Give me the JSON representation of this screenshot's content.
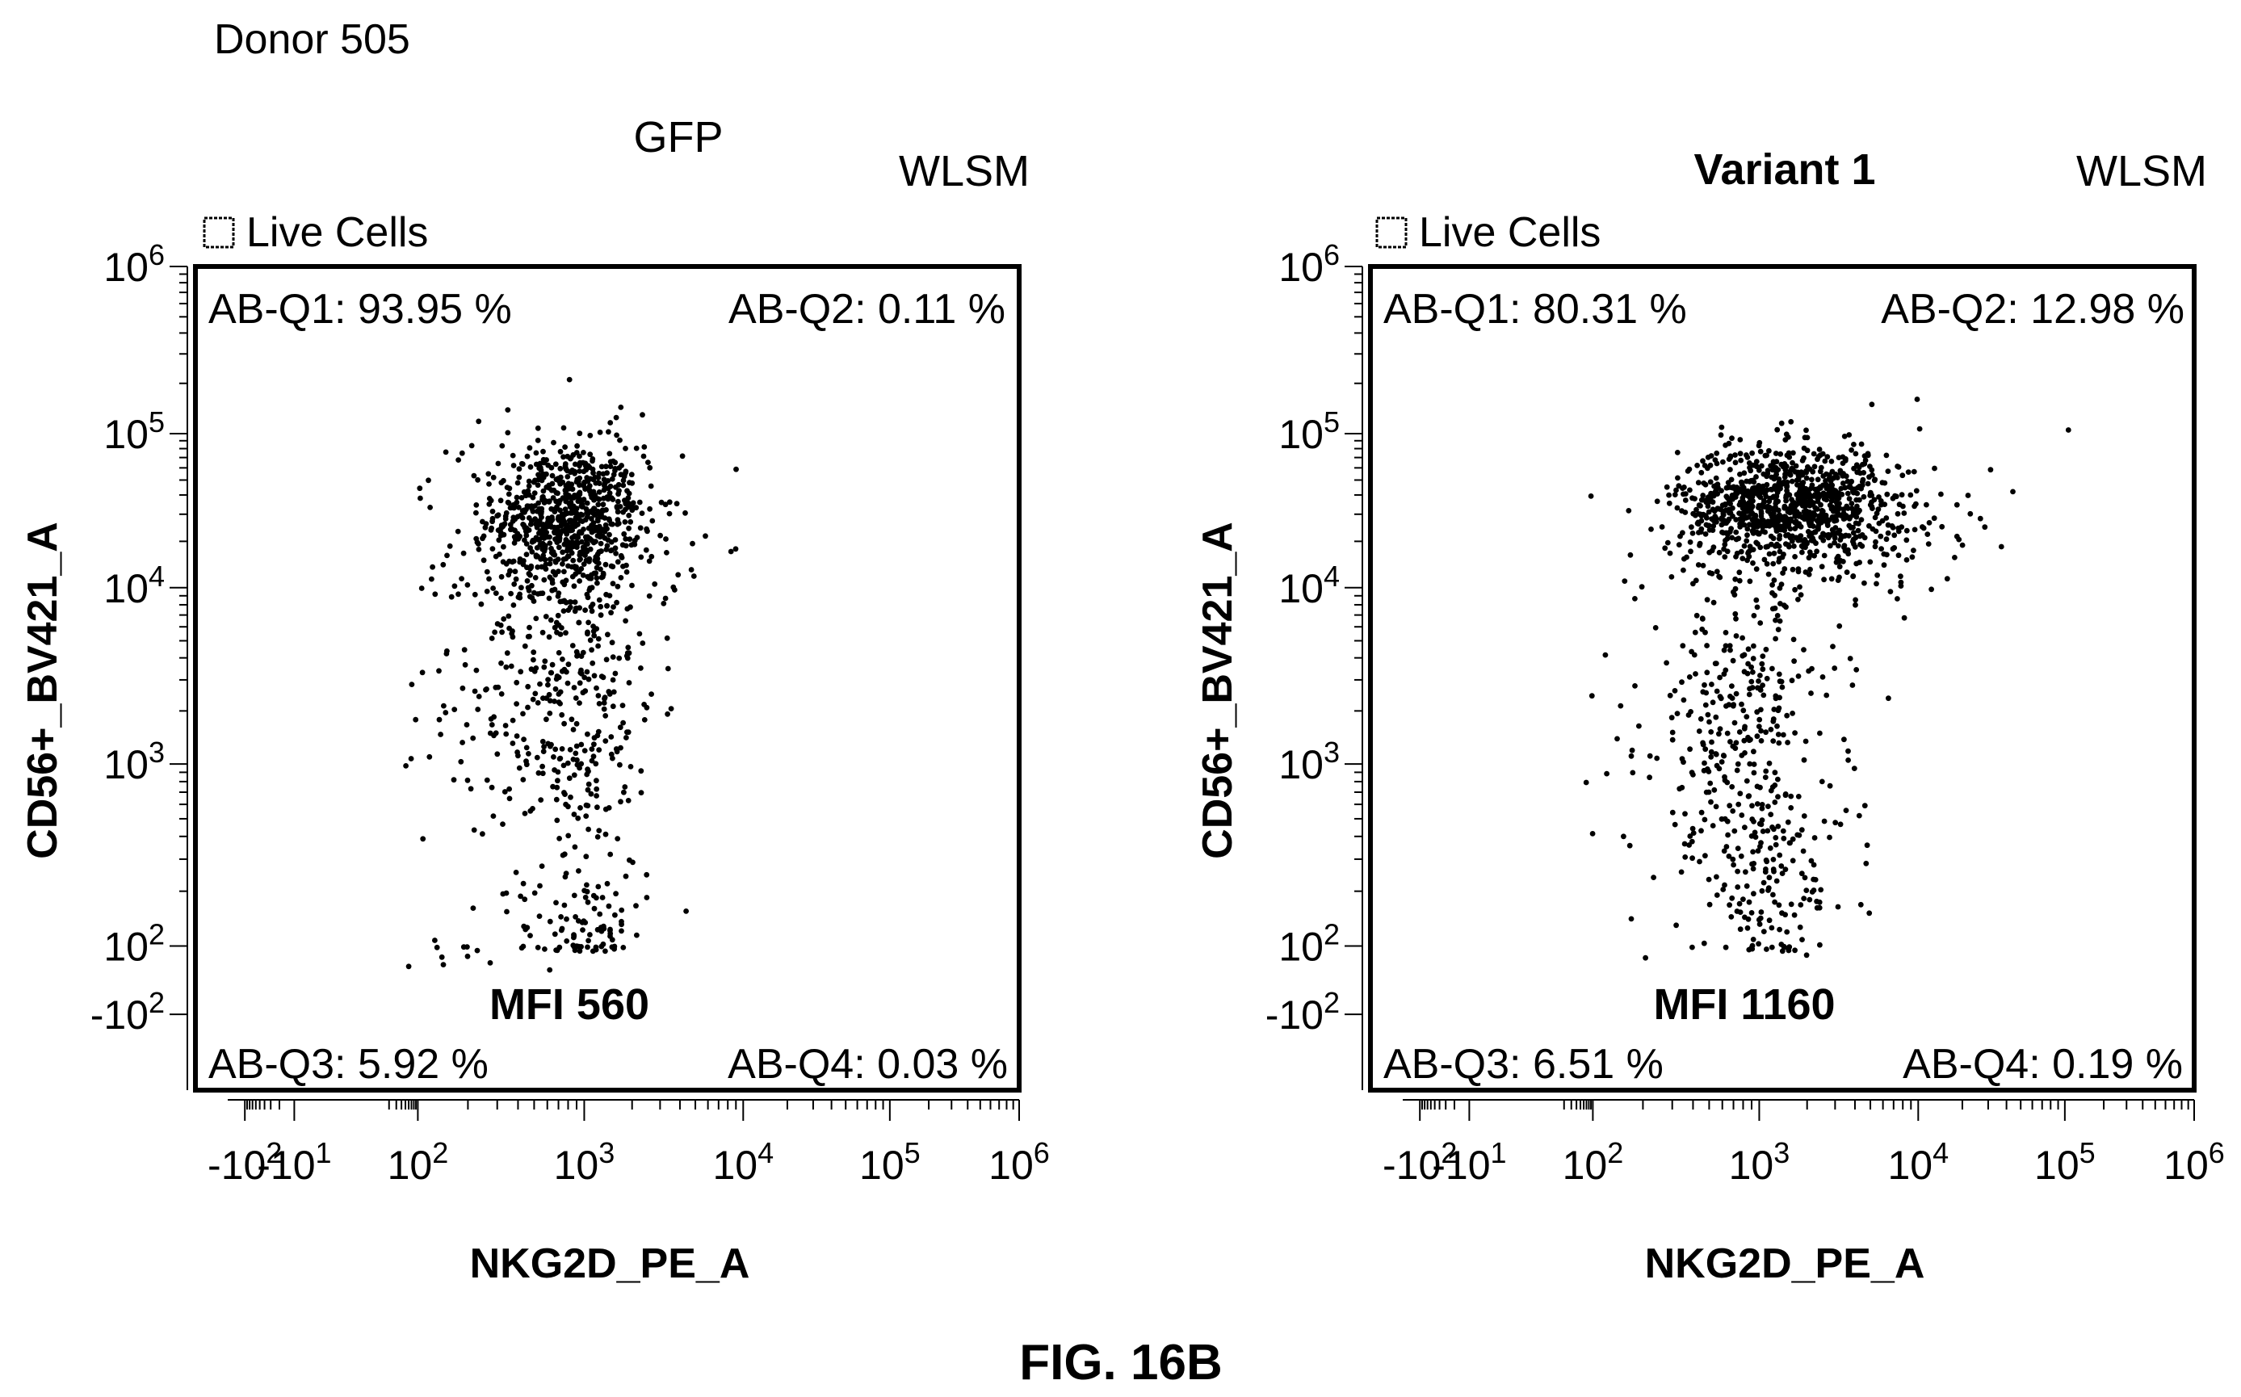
{
  "figure": {
    "donor_label": "Donor 505",
    "figure_label": "FIG. 16B"
  },
  "chart_data": [
    {
      "type": "scatter",
      "title": "GFP",
      "title_bold": false,
      "corner_label": "WLSM",
      "gate_label": "Live Cells",
      "xlabel": "NKG2D_PE_A",
      "ylabel": "CD56+_BV421_A",
      "x_scale": "biexponential",
      "y_scale": "biexponential",
      "x_ticks": [
        "-10^2",
        "-10^1",
        "10^2",
        "10^3",
        "10^4",
        "10^5",
        "10^6"
      ],
      "y_ticks": [
        "10^6",
        "10^5",
        "10^4",
        "10^3",
        "10^2",
        "-10^2"
      ],
      "quadrants": {
        "q1": "AB-Q1: 93.95 %",
        "q2": "AB-Q2: 0.11 %",
        "q3": "AB-Q3: 5.92 %",
        "q4": "AB-Q4: 0.03 %"
      },
      "mfi_label": "MFI 560",
      "populations": [
        {
          "x_center": 800,
          "y_center": 30000,
          "x_spread_log": 0.22,
          "y_spread_log": 0.22,
          "n": 520
        },
        {
          "x_center": 800,
          "y_center": 20000,
          "x_spread_log": 0.35,
          "y_spread_log": 0.35,
          "n": 320
        },
        {
          "x_center": 800,
          "y_center": 2500,
          "x_spread_log": 0.28,
          "y_spread_log": 0.5,
          "n": 340
        },
        {
          "x_center": 1000,
          "y_center": 130,
          "x_spread_log": 0.2,
          "y_spread_log": 0.18,
          "n": 90
        },
        {
          "x_center": 300,
          "y_center": 1000,
          "x_spread_log": 0.4,
          "y_spread_log": 0.9,
          "n": 45
        }
      ]
    },
    {
      "type": "scatter",
      "title": "Variant 1",
      "title_bold": true,
      "corner_label": "WLSM",
      "gate_label": "Live Cells",
      "xlabel": "NKG2D_PE_A",
      "ylabel": "CD56+_BV421_A",
      "x_scale": "biexponential",
      "y_scale": "biexponential",
      "x_ticks": [
        "-10^2",
        "-10^1",
        "10^2",
        "10^3",
        "10^4",
        "10^5",
        "10^6"
      ],
      "y_ticks": [
        "10^6",
        "10^5",
        "10^4",
        "10^3",
        "10^2",
        "-10^2"
      ],
      "quadrants": {
        "q1": "AB-Q1: 80.31 %",
        "q2": "AB-Q2: 12.98 %",
        "q3": "AB-Q3: 6.51 %",
        "q4": "AB-Q4: 0.19 %"
      },
      "mfi_label": "MFI 1160",
      "populations": [
        {
          "x_center": 1300,
          "y_center": 35000,
          "x_spread_log": 0.3,
          "y_spread_log": 0.18,
          "n": 700
        },
        {
          "x_center": 2500,
          "y_center": 30000,
          "x_spread_log": 0.45,
          "y_spread_log": 0.25,
          "n": 380
        },
        {
          "x_center": 800,
          "y_center": 2000,
          "x_spread_log": 0.3,
          "y_spread_log": 0.4,
          "n": 260
        },
        {
          "x_center": 1200,
          "y_center": 250,
          "x_spread_log": 0.25,
          "y_spread_log": 0.3,
          "n": 160
        },
        {
          "x_center": 400,
          "y_center": 800,
          "x_spread_log": 0.35,
          "y_spread_log": 0.6,
          "n": 50
        }
      ]
    }
  ]
}
